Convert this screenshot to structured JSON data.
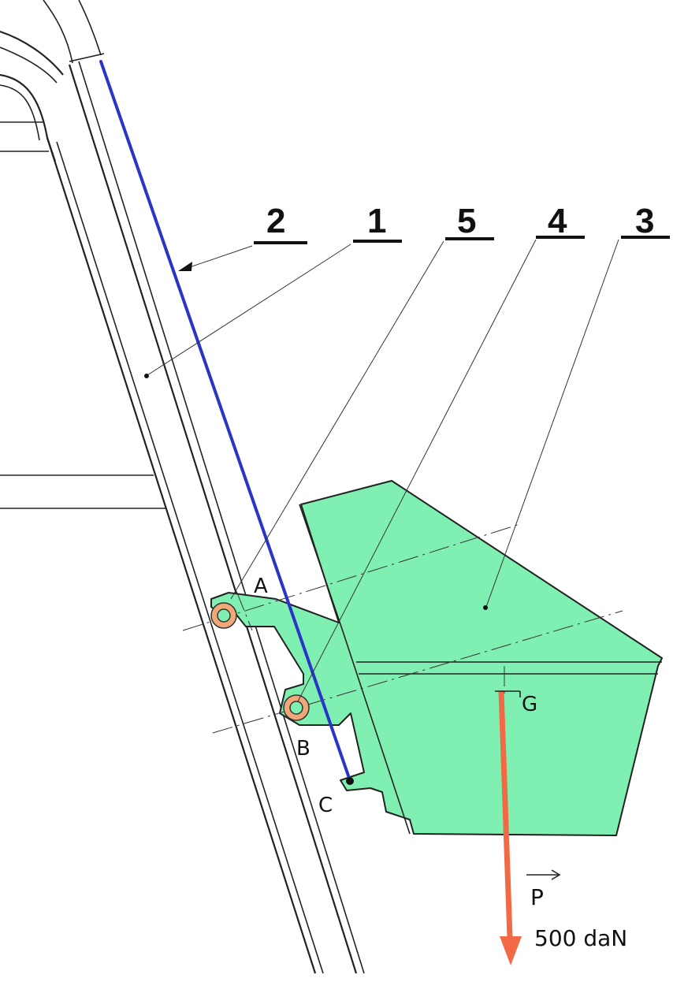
{
  "labels": {
    "part_2": "2",
    "part_1": "1",
    "part_5": "5",
    "part_4": "4",
    "part_3": "3"
  },
  "points": {
    "a": "A",
    "b": "B",
    "c": "C",
    "g": "G"
  },
  "force": {
    "symbol": "P",
    "magnitude": "500 daN"
  },
  "colors": {
    "part_fill": "#80f0b2",
    "cable": "#2a35c8",
    "force": "#f26a45",
    "pin_ring": "#f0a878"
  }
}
